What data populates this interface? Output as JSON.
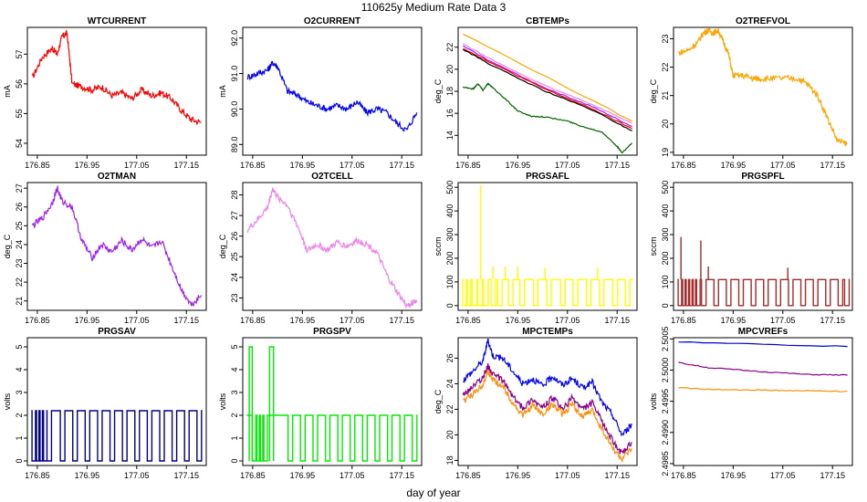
{
  "figure": {
    "title": "110625y   Medium Rate Data 3",
    "xlabel": "day of year",
    "x_ticks": [
      "176.85",
      "176.95",
      "177.05",
      "177.15"
    ]
  },
  "chart_data": [
    {
      "type": "line",
      "title": "WTCURRENT",
      "ylabel": "mA",
      "xlim": [
        176.83,
        177.19
      ],
      "ylim": [
        53.6,
        57.9
      ],
      "yticks": [
        "54",
        "55",
        "56",
        "57"
      ],
      "series": [
        {
          "name": "WTCURRENT",
          "color": "#ff0000",
          "x": [
            176.84,
            176.86,
            176.88,
            176.89,
            176.9,
            176.91,
            176.92,
            176.94,
            176.96,
            176.98,
            177.0,
            177.02,
            177.04,
            177.06,
            177.08,
            177.1,
            177.12,
            177.14,
            177.16,
            177.18
          ],
          "y": [
            56.2,
            56.9,
            57.2,
            57.0,
            57.6,
            57.7,
            56.0,
            55.9,
            55.8,
            55.9,
            55.6,
            55.7,
            55.5,
            55.8,
            55.6,
            55.7,
            55.5,
            55.1,
            54.8,
            54.7
          ]
        }
      ]
    },
    {
      "type": "line",
      "title": "O2CURRENT",
      "ylabel": "mA",
      "xlim": [
        176.83,
        177.19
      ],
      "ylim": [
        88.7,
        92.3
      ],
      "yticks": [
        "89.0",
        "90.0",
        "91.0",
        "92.0"
      ],
      "series": [
        {
          "name": "O2CURRENT",
          "color": "#0000ff",
          "x": [
            176.84,
            176.86,
            176.88,
            176.89,
            176.9,
            176.92,
            176.94,
            176.96,
            176.98,
            177.0,
            177.02,
            177.04,
            177.06,
            177.08,
            177.1,
            177.12,
            177.14,
            177.16,
            177.18
          ],
          "y": [
            90.9,
            91.0,
            91.1,
            91.3,
            91.2,
            90.5,
            90.4,
            90.2,
            90.1,
            90.0,
            90.1,
            90.0,
            90.2,
            89.9,
            90.0,
            89.9,
            89.6,
            89.4,
            89.9
          ]
        }
      ]
    },
    {
      "type": "line",
      "title": "CBTEMPs",
      "ylabel": "deg_C",
      "xlim": [
        176.83,
        177.19
      ],
      "ylim": [
        12.2,
        23.8
      ],
      "yticks": [
        "14",
        "16",
        "18",
        "20",
        "22"
      ],
      "series": [
        {
          "name": "orange",
          "color": "#ffa500",
          "x": [
            176.84,
            177.18
          ],
          "y": [
            23.2,
            15.3
          ]
        },
        {
          "name": "violet",
          "color": "#ee82ee",
          "x": [
            176.84,
            176.9,
            177.0,
            177.1,
            177.18
          ],
          "y": [
            22.3,
            20.8,
            18.6,
            16.8,
            15.1
          ]
        },
        {
          "name": "purple",
          "color": "#a020f0",
          "x": [
            176.84,
            176.9,
            177.0,
            177.1,
            177.18
          ],
          "y": [
            22.1,
            20.6,
            18.4,
            16.6,
            14.8
          ]
        },
        {
          "name": "red",
          "color": "#ff0000",
          "x": [
            176.84,
            176.9,
            177.0,
            177.1,
            177.18
          ],
          "y": [
            21.9,
            20.5,
            18.3,
            16.4,
            14.6
          ]
        },
        {
          "name": "black",
          "color": "#000000",
          "x": [
            176.84,
            176.9,
            177.0,
            177.1,
            177.18
          ],
          "y": [
            21.8,
            20.3,
            18.1,
            16.3,
            14.4
          ]
        },
        {
          "name": "green",
          "color": "#006400",
          "x": [
            176.84,
            176.86,
            176.87,
            176.88,
            176.89,
            176.9,
            176.93,
            176.95,
            176.98,
            177.0,
            177.05,
            177.08,
            177.12,
            177.15,
            177.16,
            177.18
          ],
          "y": [
            18.4,
            18.2,
            18.7,
            18.1,
            18.7,
            18.3,
            17.1,
            16.2,
            15.7,
            15.7,
            15.3,
            14.8,
            14.3,
            13.0,
            12.4,
            13.3
          ]
        }
      ]
    },
    {
      "type": "line",
      "title": "O2TREFVOL",
      "ylabel": "deg_C",
      "xlim": [
        176.83,
        177.19
      ],
      "ylim": [
        18.9,
        23.4
      ],
      "yticks": [
        "19",
        "20",
        "21",
        "22",
        "23"
      ],
      "series": [
        {
          "name": "O2TREFVOL",
          "color": "#ffa500",
          "x": [
            176.84,
            176.86,
            176.88,
            176.89,
            176.9,
            176.91,
            176.92,
            176.93,
            176.94,
            176.95,
            176.97,
            176.99,
            177.0,
            177.02,
            177.05,
            177.08,
            177.1,
            177.12,
            177.14,
            177.16,
            177.18
          ],
          "y": [
            22.5,
            22.6,
            22.9,
            23.2,
            23.3,
            23.2,
            23.3,
            22.9,
            22.5,
            21.7,
            21.7,
            21.6,
            21.6,
            21.6,
            21.6,
            21.6,
            21.4,
            21.0,
            20.2,
            19.4,
            19.3
          ]
        }
      ]
    },
    {
      "type": "line",
      "title": "O2TMAN",
      "ylabel": "deg_C",
      "xlim": [
        176.83,
        177.19
      ],
      "ylim": [
        20.5,
        27.3
      ],
      "yticks": [
        "21",
        "22",
        "23",
        "24",
        "25",
        "26",
        "27"
      ],
      "series": [
        {
          "name": "O2TMAN",
          "color": "#a020f0",
          "x": [
            176.84,
            176.86,
            176.88,
            176.89,
            176.9,
            176.92,
            176.94,
            176.96,
            176.98,
            177.0,
            177.02,
            177.04,
            177.06,
            177.08,
            177.1,
            177.12,
            177.14,
            177.16,
            177.18
          ],
          "y": [
            25.0,
            25.4,
            26.2,
            27.0,
            26.3,
            26.0,
            24.2,
            23.3,
            24.0,
            23.6,
            24.2,
            23.7,
            24.3,
            23.8,
            24.2,
            22.9,
            21.6,
            20.8,
            21.3
          ]
        }
      ]
    },
    {
      "type": "line",
      "title": "O2TCELL",
      "ylabel": "deg_C",
      "xlim": [
        176.83,
        177.19
      ],
      "ylim": [
        22.4,
        28.6
      ],
      "yticks": [
        "23",
        "24",
        "25",
        "26",
        "27",
        "28"
      ],
      "series": [
        {
          "name": "O2TCELL",
          "color": "#ee82ee",
          "x": [
            176.84,
            176.86,
            176.88,
            176.89,
            176.9,
            176.92,
            176.94,
            176.96,
            176.98,
            177.0,
            177.02,
            177.04,
            177.06,
            177.08,
            177.1,
            177.12,
            177.14,
            177.16,
            177.18
          ],
          "y": [
            26.3,
            26.8,
            27.4,
            28.3,
            27.9,
            27.5,
            26.5,
            25.3,
            25.6,
            25.3,
            25.7,
            25.5,
            25.8,
            25.6,
            25.2,
            24.1,
            23.3,
            22.6,
            22.9
          ]
        }
      ]
    },
    {
      "type": "line",
      "title": "PRGSAFL",
      "ylabel": "sccm",
      "xlim": [
        176.83,
        177.19
      ],
      "ylim": [
        -20,
        520
      ],
      "yticks": [
        "0",
        "100",
        "200",
        "300",
        "400",
        "500"
      ],
      "series": [
        {
          "name": "PRGSAFL",
          "color": "#ffff00",
          "baseline": 0,
          "level": 110,
          "pulses": [
            176.843,
            176.85,
            176.862,
            176.873,
            176.885,
            176.9,
            176.913,
            176.935,
            176.958,
            176.985,
            177.012,
            177.04,
            177.065,
            177.092,
            177.118,
            177.145,
            177.17
          ],
          "spikes": [
            {
              "x": 176.875,
              "y": 510
            },
            {
              "x": 176.9,
              "y": 165
            },
            {
              "x": 176.925,
              "y": 165
            },
            {
              "x": 176.95,
              "y": 165
            },
            {
              "x": 177.005,
              "y": 160
            },
            {
              "x": 177.11,
              "y": 160
            }
          ]
        }
      ]
    },
    {
      "type": "line",
      "title": "PRGSPFL",
      "ylabel": "sccm",
      "xlim": [
        176.83,
        177.19
      ],
      "ylim": [
        -20,
        520
      ],
      "yticks": [
        "0",
        "100",
        "200",
        "300",
        "400",
        "500"
      ],
      "series": [
        {
          "name": "PRGSPFL",
          "color": "#a52a2a",
          "baseline": 0,
          "level": 110,
          "pulses": [
            176.843,
            176.85,
            176.857,
            176.864,
            176.871,
            176.878,
            176.89,
            176.915,
            176.94,
            176.965,
            176.99,
            177.015,
            177.04,
            177.065,
            177.09,
            177.115,
            177.14,
            177.165,
            177.178
          ],
          "spikes": [
            {
              "x": 176.845,
              "y": 290
            },
            {
              "x": 176.885,
              "y": 275
            },
            {
              "x": 176.9,
              "y": 165
            },
            {
              "x": 177.06,
              "y": 160
            }
          ]
        }
      ]
    },
    {
      "type": "line",
      "title": "PRGSAV",
      "ylabel": "volts",
      "xlim": [
        176.83,
        177.19
      ],
      "ylim": [
        -0.2,
        5.4
      ],
      "yticks": [
        "0",
        "1",
        "2",
        "3",
        "4",
        "5"
      ],
      "series": [
        {
          "name": "PRGSAV",
          "color": "#00008b",
          "baseline": 0,
          "level": 2.2,
          "pulses": [
            176.843,
            176.85,
            176.857,
            176.864,
            176.873,
            176.9,
            176.925,
            176.95,
            176.975,
            177.0,
            177.025,
            177.05,
            177.075,
            177.1,
            177.125,
            177.15,
            177.175
          ]
        }
      ]
    },
    {
      "type": "line",
      "title": "PRGSPV",
      "ylabel": "volts",
      "xlim": [
        176.83,
        177.19
      ],
      "ylim": [
        -0.2,
        5.4
      ],
      "yticks": [
        "0",
        "1",
        "2",
        "3",
        "4",
        "5"
      ],
      "series": [
        {
          "name": "PRGSPV",
          "color": "#00ee00",
          "baseline": 0,
          "level": 2.0,
          "pulses": [
            176.853,
            176.86,
            176.867,
            176.874,
            176.925,
            176.95,
            176.975,
            177.0,
            177.025,
            177.05,
            177.075,
            177.1,
            177.125,
            177.15,
            177.175
          ],
          "high_blocks": [
            {
              "x0": 176.843,
              "x1": 176.849,
              "y": 5.0
            },
            {
              "x0": 176.884,
              "x1": 176.892,
              "y": 5.0
            }
          ]
        }
      ]
    },
    {
      "type": "line",
      "title": "MPCTEMPs",
      "ylabel": "deg_C",
      "xlim": [
        176.83,
        177.19
      ],
      "ylim": [
        17.6,
        27.6
      ],
      "yticks": [
        "18",
        "20",
        "22",
        "24",
        "26"
      ],
      "series": [
        {
          "name": "blue",
          "color": "#0000ff",
          "x": [
            176.84,
            176.86,
            176.88,
            176.89,
            176.9,
            176.92,
            176.94,
            176.96,
            176.98,
            177.0,
            177.02,
            177.04,
            177.06,
            177.08,
            177.1,
            177.12,
            177.14,
            177.16,
            177.18
          ],
          "y": [
            24.3,
            25.0,
            25.8,
            27.4,
            26.2,
            26.0,
            25.0,
            24.0,
            24.4,
            23.8,
            24.6,
            23.9,
            24.4,
            23.7,
            24.1,
            22.5,
            21.6,
            20.0,
            20.8
          ]
        },
        {
          "name": "purple",
          "color": "#8b008b",
          "x": [
            176.84,
            176.86,
            176.88,
            176.89,
            176.9,
            176.92,
            176.94,
            176.96,
            176.98,
            177.0,
            177.02,
            177.04,
            177.06,
            177.08,
            177.1,
            177.12,
            177.14,
            177.16,
            177.18
          ],
          "y": [
            23.1,
            23.8,
            24.5,
            25.4,
            24.7,
            24.3,
            23.0,
            22.1,
            22.8,
            22.1,
            22.9,
            22.0,
            22.9,
            22.0,
            22.5,
            21.0,
            19.6,
            18.5,
            19.4
          ]
        },
        {
          "name": "orange",
          "color": "#ff8c00",
          "x": [
            176.84,
            176.86,
            176.88,
            176.89,
            176.9,
            176.92,
            176.94,
            176.96,
            176.98,
            177.0,
            177.02,
            177.04,
            177.06,
            177.08,
            177.1,
            177.12,
            177.14,
            177.16,
            177.18
          ],
          "y": [
            22.6,
            23.2,
            24.0,
            24.9,
            24.3,
            23.8,
            22.5,
            21.5,
            22.3,
            21.6,
            22.4,
            21.6,
            22.4,
            21.4,
            21.9,
            20.4,
            19.0,
            18.1,
            18.9
          ]
        }
      ]
    },
    {
      "type": "line",
      "title": "MPCVREFs",
      "ylabel": "volts",
      "xlim": [
        176.83,
        177.19
      ],
      "ylim": [
        2.49847,
        2.50052
      ],
      "yticks": [
        "2.4985",
        "2.4990",
        "2.4995",
        "2.5000",
        "2.5005"
      ],
      "series": [
        {
          "name": "blue",
          "color": "#0000cd",
          "x": [
            176.84,
            177.18
          ],
          "y": [
            2.50045,
            2.50038
          ]
        },
        {
          "name": "purple",
          "color": "#8b008b",
          "x": [
            176.84,
            176.9,
            177.0,
            177.1,
            177.18
          ],
          "y": [
            2.50012,
            2.50004,
            2.49998,
            2.49993,
            2.49992
          ]
        },
        {
          "name": "orange",
          "color": "#ff8c00",
          "x": [
            176.84,
            176.9,
            177.0,
            177.1,
            177.18
          ],
          "y": [
            2.49972,
            2.49969,
            2.49968,
            2.49967,
            2.49966
          ]
        }
      ]
    }
  ]
}
